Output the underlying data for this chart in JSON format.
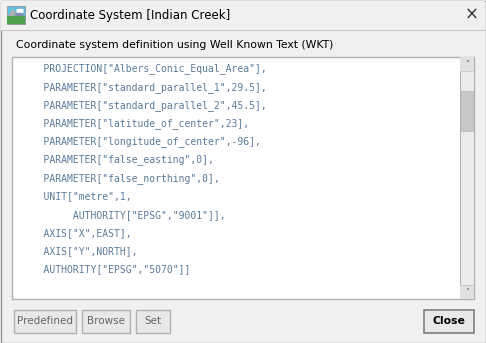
{
  "title": "Coordinate System [Indian Creek]",
  "subtitle": "Coordinate system definition using Well Known Text (WKT)",
  "content_lines": [
    "    PROJECTION[\"Albers_Conic_Equal_Area\"],",
    "    PARAMETER[\"standard_parallel_1\",29.5],",
    "    PARAMETER[\"standard_parallel_2\",45.5],",
    "    PARAMETER[\"latitude_of_center\",23],",
    "    PARAMETER[\"longitude_of_center\",-96],",
    "    PARAMETER[\"false_easting\",0],",
    "    PARAMETER[\"false_northing\",0],",
    "    UNIT[\"metre\",1,",
    "         AUTHORITY[\"EPSG\",\"9001\"]],",
    "    AXIS[\"X\",EAST],",
    "    AXIS[\"Y\",NORTH],",
    "    AUTHORITY[\"EPSG\",\"5070\"]]"
  ],
  "buttons_left": [
    "Predefined",
    "Browse",
    "Set"
  ],
  "buttons_right": [
    "Close"
  ],
  "bg_color": "#f0f0f0",
  "titlebar_color": "#f0f0f0",
  "text_color": "#5a7a9a",
  "content_bg": "#ffffff",
  "border_color": "#b0b0b0",
  "button_color": "#e0e0e0",
  "title_text_color": "#000000",
  "font_size": 7.0,
  "subtitle_font_size": 7.8,
  "title_fontsize": 8.5
}
